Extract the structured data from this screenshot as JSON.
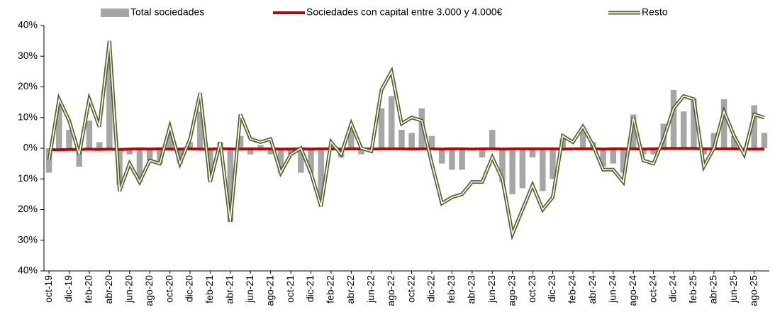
{
  "chart_data": {
    "type": "bar-line",
    "categories": [
      "oct-19",
      null,
      "dic-19",
      null,
      "feb-20",
      null,
      "abr-20",
      null,
      "jun-20",
      null,
      "ago-20",
      null,
      "oct-20",
      null,
      "dic-20",
      null,
      "feb-21",
      null,
      "abr-21",
      null,
      "jun-21",
      null,
      "ago-21",
      null,
      "oct-21",
      null,
      "dic-21",
      null,
      "feb-22",
      null,
      "abr-22",
      null,
      "jun-22",
      null,
      "ago-22",
      null,
      "oct-22",
      null,
      "dic-22",
      null,
      "feb-23",
      null,
      "abr-23",
      null,
      "jun-23",
      null,
      "ago-23",
      null,
      "oct-23",
      null,
      "dic-23",
      null,
      "feb-24",
      null,
      "abr-24",
      null,
      "jun-24",
      null,
      "ago-24",
      null,
      "oct-24",
      null,
      "dic-24",
      null,
      "feb-25",
      null,
      "abr-25",
      null,
      "jun-25",
      null,
      "ago-25",
      null
    ],
    "series": [
      {
        "name": "Total sociedades",
        "color": "#a6a6a6",
        "kind": "bar",
        "values": [
          -8,
          14,
          6,
          -6,
          9,
          2,
          28,
          -12,
          -2,
          -11,
          -4,
          -5,
          5,
          -5,
          2,
          12,
          -10,
          2,
          -24,
          4,
          -2,
          1,
          -2,
          -8,
          -2,
          -8,
          -8,
          -16,
          0,
          -3,
          7,
          -2,
          0,
          13,
          17,
          6,
          5,
          13,
          4,
          -5,
          -7,
          -7,
          0,
          -3,
          6,
          -11,
          -15,
          -13,
          -3,
          -14,
          -10,
          3,
          0,
          6,
          2,
          -6,
          -5,
          -8,
          11,
          -2,
          -2,
          8,
          19,
          12,
          16,
          -2,
          5,
          16,
          4,
          0,
          14,
          5
        ]
      },
      {
        "name": "Sociedades con capital entre 3.000 y 4.000€",
        "color": "#c00000",
        "kind": "line",
        "values": [
          -0.5,
          -0.5,
          -0.4,
          -0.4,
          -0.3,
          -0.4,
          -0.3,
          -0.4,
          -0.3,
          -0.2,
          -0.3,
          -0.2,
          -0.3,
          -0.3,
          -0.2,
          -0.3,
          -0.3,
          -0.2,
          -0.2,
          -0.3,
          -0.2,
          -0.3,
          -0.2,
          -0.3,
          -0.3,
          -0.2,
          -0.3,
          -0.2,
          -0.2,
          -0.3,
          -0.2,
          -0.2,
          -0.3,
          -0.2,
          -0.2,
          -0.2,
          -0.3,
          -0.2,
          -0.2,
          -0.3,
          -0.2,
          -0.2,
          -0.3,
          -0.2,
          -0.2,
          -0.3,
          -0.2,
          -0.2,
          -0.2,
          -0.2,
          -0.2,
          -0.3,
          -0.2,
          -0.2,
          -0.2,
          -0.3,
          -0.2,
          -0.2,
          -0.2,
          -0.3,
          -0.2,
          -0.1,
          -0.1,
          -0.1,
          -0.1,
          -0.2,
          -0.2,
          -0.2,
          -0.2,
          -0.3,
          -0.3,
          -0.3
        ]
      },
      {
        "name": "Resto",
        "color": "#4f6228",
        "kind": "double-line",
        "values": [
          -4,
          16,
          9,
          -2,
          16,
          7,
          35,
          -14,
          -5,
          -11,
          -4,
          -5,
          7,
          -5,
          3,
          18,
          -11,
          2,
          -24,
          11,
          3,
          2,
          3,
          -8,
          -2,
          0,
          -8,
          -19,
          2,
          -2,
          8,
          0,
          -1,
          19,
          25,
          8,
          10,
          9,
          -5,
          -18,
          -16,
          -15,
          -11,
          -11,
          -3,
          -10,
          -28,
          -20,
          -12,
          -20,
          -16,
          4,
          2,
          7,
          1,
          -7,
          -7,
          -11,
          10,
          -4,
          -5,
          3,
          13,
          17,
          16,
          -6,
          0,
          12,
          4,
          -2,
          11,
          10
        ]
      }
    ],
    "ylim": [
      -40,
      40
    ],
    "yticks": [
      {
        "value": -40,
        "label": "40%"
      },
      {
        "value": -30,
        "label": "30%"
      },
      {
        "value": -20,
        "label": "20%"
      },
      {
        "value": -10,
        "label": "10%"
      },
      {
        "value": 0,
        "label": "0%"
      },
      {
        "value": 10,
        "label": "10%"
      },
      {
        "value": 20,
        "label": "20%"
      },
      {
        "value": 30,
        "label": "30%"
      },
      {
        "value": 40,
        "label": "40%"
      }
    ],
    "legend": "top"
  }
}
